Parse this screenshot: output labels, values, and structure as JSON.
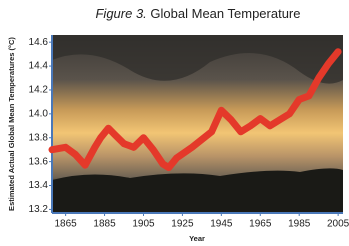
{
  "chart_data": {
    "type": "line",
    "label": "Figure 3.",
    "title": "Global Mean Temperature",
    "y_label": "Estimated Actual Global Mean Temperatures (°C)",
    "x_label": "Year",
    "x": [
      1858,
      1865,
      1870,
      1875,
      1880,
      1883,
      1887,
      1890,
      1895,
      1900,
      1905,
      1910,
      1915,
      1918,
      1922,
      1930,
      1940,
      1945,
      1950,
      1955,
      1960,
      1965,
      1970,
      1975,
      1980,
      1985,
      1990,
      1995,
      2000,
      2005
    ],
    "values": [
      13.7,
      13.72,
      13.66,
      13.57,
      13.72,
      13.8,
      13.88,
      13.83,
      13.75,
      13.72,
      13.8,
      13.7,
      13.58,
      13.55,
      13.63,
      13.72,
      13.85,
      14.03,
      13.95,
      13.85,
      13.9,
      13.96,
      13.9,
      13.95,
      14.0,
      14.12,
      14.15,
      14.3,
      14.42,
      14.52
    ],
    "color": "#e4392a",
    "xlim": [
      1858,
      2007.5
    ],
    "xticks": [
      1865,
      1885,
      1905,
      1925,
      1945,
      1965,
      1985,
      2005
    ],
    "ylim": [
      13.17,
      14.66
    ],
    "yticks": [
      13.2,
      13.4,
      13.6,
      13.8,
      {
        "value": 14,
        "label": "14.0"
      },
      14.2,
      14.4,
      14.6
    ]
  }
}
